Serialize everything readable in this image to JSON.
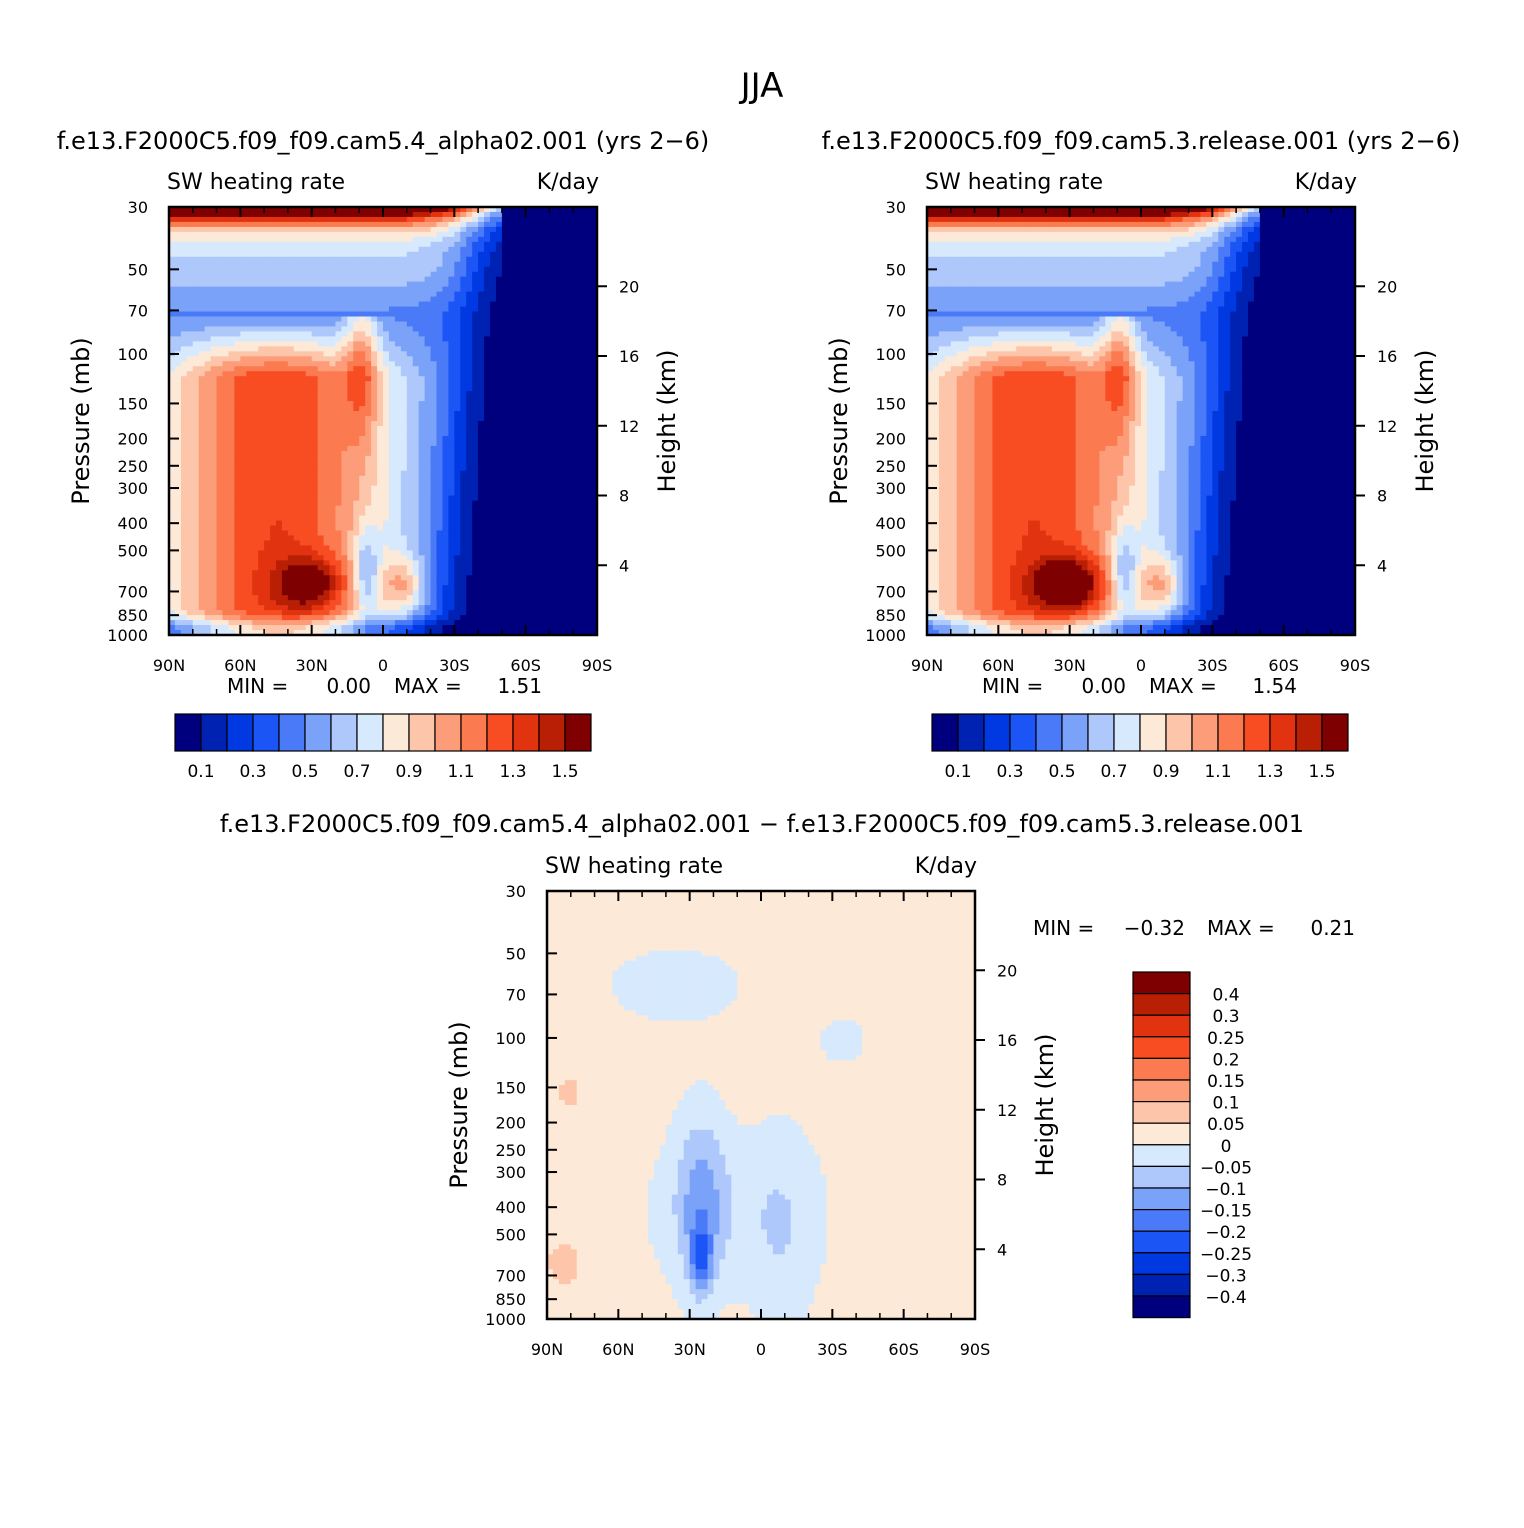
{
  "figure": {
    "title": "JJA"
  },
  "colors": {
    "blue_red_14": [
      "#00007f",
      "#0022b2",
      "#0038e2",
      "#1c55f5",
      "#4a7af7",
      "#7ba2f9",
      "#aec8fb",
      "#d7e9fd",
      "#fde9d7",
      "#fdc6aa",
      "#fc9c78",
      "#fb7a50",
      "#f84d23",
      "#e23310",
      "#b81f05",
      "#7f0000"
    ],
    "diff_14": [
      "#00007f",
      "#0022b2",
      "#0038e2",
      "#1c55f5",
      "#4a7af7",
      "#7ba2f9",
      "#aec8fb",
      "#d7e9fd",
      "#fde9d7",
      "#fdc6aa",
      "#fc9c78",
      "#fb7a50",
      "#f84d23",
      "#e23310",
      "#b81f05",
      "#7f0000"
    ]
  },
  "chart_data": [
    {
      "type": "heatmap",
      "panel": "left",
      "title": "f.e13.F2000C5.f09_f09.cam5.4_alpha02.001 (yrs 2−6)",
      "variable": "SW heating rate",
      "units": "K/day",
      "xlabel": "",
      "ylabel": "Pressure (mb)",
      "y2label": "Height (km)",
      "x_ticks": [
        "90N",
        "60N",
        "30N",
        "0",
        "30S",
        "60S",
        "90S"
      ],
      "x_range": [
        90,
        -90
      ],
      "y_ticks": [
        30,
        50,
        70,
        100,
        150,
        200,
        250,
        300,
        400,
        500,
        700,
        850,
        1000
      ],
      "y_range": [
        30,
        1000
      ],
      "y_scale": "log",
      "y2_ticks": [
        20,
        16,
        12,
        8,
        4
      ],
      "min_label": "MIN =",
      "min_value": "0.00",
      "max_label": "MAX =",
      "max_value": "1.51",
      "colorbar_levels": [
        "0.1",
        "0.3",
        "0.5",
        "0.7",
        "0.9",
        "1.1",
        "1.3",
        "1.5"
      ]
    },
    {
      "type": "heatmap",
      "panel": "right",
      "title": "f.e13.F2000C5.f09_f09.cam5.3.release.001 (yrs 2−6)",
      "variable": "SW heating rate",
      "units": "K/day",
      "xlabel": "",
      "ylabel": "Pressure (mb)",
      "y2label": "Height (km)",
      "x_ticks": [
        "90N",
        "60N",
        "30N",
        "0",
        "30S",
        "60S",
        "90S"
      ],
      "x_range": [
        90,
        -90
      ],
      "y_ticks": [
        30,
        50,
        70,
        100,
        150,
        200,
        250,
        300,
        400,
        500,
        700,
        850,
        1000
      ],
      "y_range": [
        30,
        1000
      ],
      "y_scale": "log",
      "y2_ticks": [
        20,
        16,
        12,
        8,
        4
      ],
      "min_label": "MIN =",
      "min_value": "0.00",
      "max_label": "MAX =",
      "max_value": "1.54",
      "colorbar_levels": [
        "0.1",
        "0.3",
        "0.5",
        "0.7",
        "0.9",
        "1.1",
        "1.3",
        "1.5"
      ]
    },
    {
      "type": "heatmap",
      "panel": "difference",
      "title": "f.e13.F2000C5.f09_f09.cam5.4_alpha02.001 − f.e13.F2000C5.f09_f09.cam5.3.release.001",
      "variable": "SW heating rate",
      "units": "K/day",
      "xlabel": "",
      "ylabel": "Pressure (mb)",
      "y2label": "Height (km)",
      "x_ticks": [
        "90N",
        "60N",
        "30N",
        "0",
        "30S",
        "60S",
        "90S"
      ],
      "x_range": [
        90,
        -90
      ],
      "y_ticks": [
        30,
        50,
        70,
        100,
        150,
        200,
        250,
        300,
        400,
        500,
        700,
        850,
        1000
      ],
      "y_range": [
        30,
        1000
      ],
      "y_scale": "log",
      "y2_ticks": [
        20,
        16,
        12,
        8,
        4
      ],
      "min_label": "MIN =",
      "min_value": "−0.32",
      "max_label": "MAX =",
      "max_value": "0.21",
      "colorbar_levels": [
        "0.4",
        "0.3",
        "0.25",
        "0.2",
        "0.15",
        "0.1",
        "0.05",
        "0",
        "−0.05",
        "−0.1",
        "−0.15",
        "−0.2",
        "−0.25",
        "−0.3",
        "−0.4"
      ]
    }
  ]
}
